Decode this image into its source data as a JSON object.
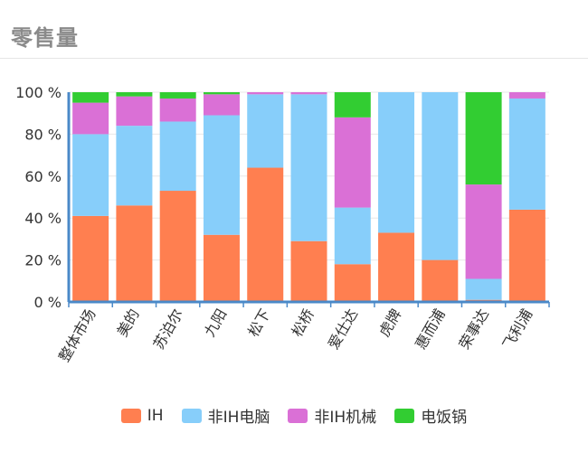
{
  "header": {
    "title": "零售量"
  },
  "colors": {
    "IH": "#ff7f50",
    "非IH电脑": "#87cefa",
    "非IH机械": "#da70d6",
    "电饭锅": "#32cd32",
    "axis": "#4a89c8",
    "grid": "#e8e8e8"
  },
  "chart_data": {
    "type": "bar",
    "stacked": true,
    "title": "零售量",
    "ylim": [
      0,
      100
    ],
    "yticks": [
      "0 %",
      "20 %",
      "40 %",
      "60 %",
      "80 %",
      "100 %"
    ],
    "grid": true,
    "legend_position": "bottom",
    "categories": [
      "整体市场",
      "美的",
      "苏泊尔",
      "九阳",
      "松下",
      "松桥",
      "爱仕达",
      "虎牌",
      "惠而浦",
      "荣事达",
      "飞利浦"
    ],
    "series": [
      {
        "name": "IH",
        "values": [
          41,
          46,
          53,
          32,
          64,
          29,
          18,
          33,
          20,
          1,
          44
        ]
      },
      {
        "name": "非IH电脑",
        "values": [
          39,
          38,
          33,
          57,
          35,
          70,
          27,
          67,
          80,
          10,
          53
        ]
      },
      {
        "name": "非IH机械",
        "values": [
          15,
          14,
          11,
          10,
          1,
          1,
          43,
          0,
          0,
          45,
          3
        ]
      },
      {
        "name": "电饭锅",
        "values": [
          5,
          2,
          3,
          1,
          0,
          0,
          12,
          0,
          0,
          44,
          0
        ]
      }
    ]
  }
}
